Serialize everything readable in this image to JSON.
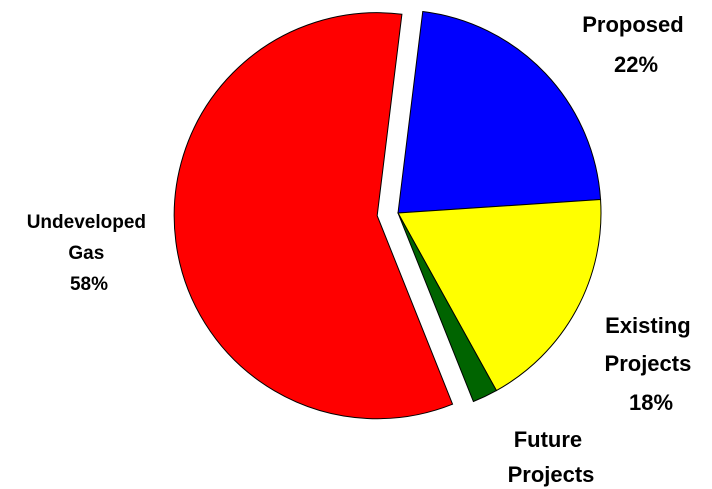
{
  "chart_data": {
    "type": "pie",
    "title": "",
    "slices": [
      {
        "name": "Proposed",
        "label_lines": [
          "Proposed",
          "22%"
        ],
        "value": 22,
        "color": "#0000ff"
      },
      {
        "name": "Existing Projects",
        "label_lines": [
          "Existing",
          "Projects",
          "18%"
        ],
        "value": 18,
        "color": "#ffff00"
      },
      {
        "name": "Future Projects",
        "label_lines": [
          "Future",
          "Projects"
        ],
        "value": 2,
        "color": "#006400"
      },
      {
        "name": "Undeveloped Gas",
        "label_lines": [
          "Undeveloped",
          "Gas",
          "58%"
        ],
        "value": 58,
        "color": "#ff0000"
      }
    ],
    "exploded": [
      "Undeveloped Gas"
    ],
    "legend": "none"
  }
}
